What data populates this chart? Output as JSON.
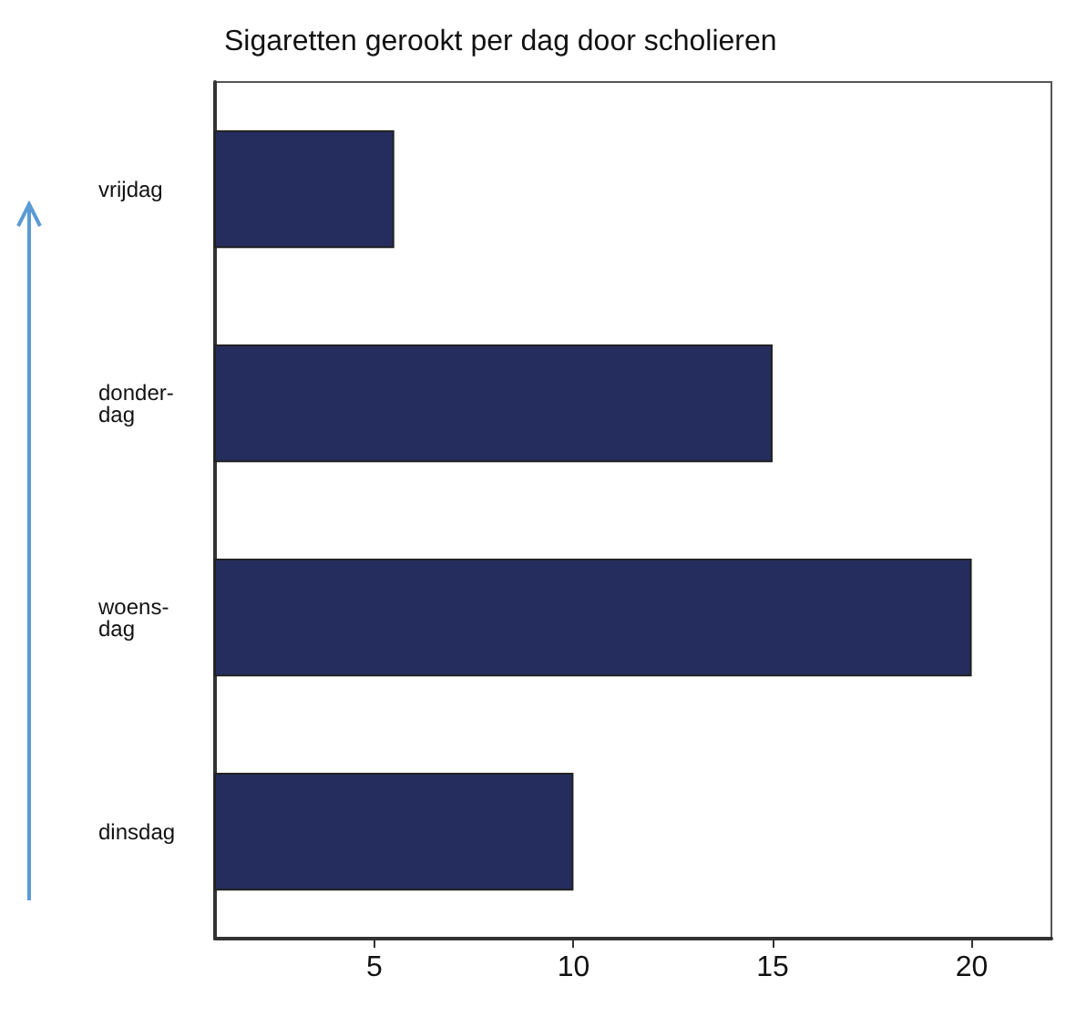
{
  "chart_data": {
    "type": "bar",
    "title": "Sigaretten gerookt per dag door scholieren",
    "orientation": "horizontal",
    "categories": [
      "vrijdag",
      "donder-\ndag",
      "woens-\ndag",
      "dinsdag"
    ],
    "values": [
      5.5,
      15,
      20,
      10
    ],
    "color": "#252d5e",
    "xlim": [
      1,
      22
    ],
    "xticks": [
      5,
      10,
      15,
      20
    ],
    "grid": false
  }
}
